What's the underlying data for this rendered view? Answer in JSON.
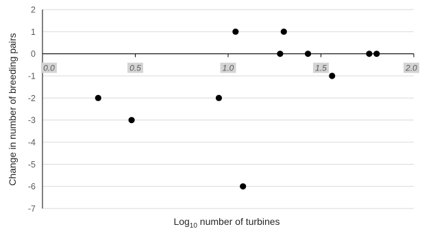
{
  "chart_data": {
    "type": "scatter",
    "title": "",
    "xlabel": "Log",
    "xlabel_subscript": "10",
    "xlabel_suffix": " number of turbines",
    "ylabel": "Change in number of breeding pairs",
    "xlim": [
      0.0,
      2.0
    ],
    "ylim": [
      -7,
      2
    ],
    "x_ticks": [
      "0.0",
      "0.5",
      "1.0",
      "1.5",
      "2.0"
    ],
    "y_ticks": [
      "2",
      "1",
      "0",
      "-1",
      "-2",
      "-3",
      "-4",
      "-5",
      "-6",
      "-7"
    ],
    "grid": true,
    "x_tick_labels_position": "along y = 0 line, with grey highlight",
    "points": [
      {
        "x": 0.3,
        "y": -2
      },
      {
        "x": 0.48,
        "y": -3
      },
      {
        "x": 0.95,
        "y": -2
      },
      {
        "x": 1.04,
        "y": 1
      },
      {
        "x": 1.08,
        "y": -6
      },
      {
        "x": 1.28,
        "y": 0
      },
      {
        "x": 1.3,
        "y": 1
      },
      {
        "x": 1.43,
        "y": 0
      },
      {
        "x": 1.56,
        "y": -1
      },
      {
        "x": 1.76,
        "y": 0
      },
      {
        "x": 1.8,
        "y": 0
      }
    ],
    "colors": {
      "points": "#000000",
      "grid": "#d9d9d9",
      "axis": "#000000",
      "tick_highlight": "#d4d4d4"
    }
  }
}
